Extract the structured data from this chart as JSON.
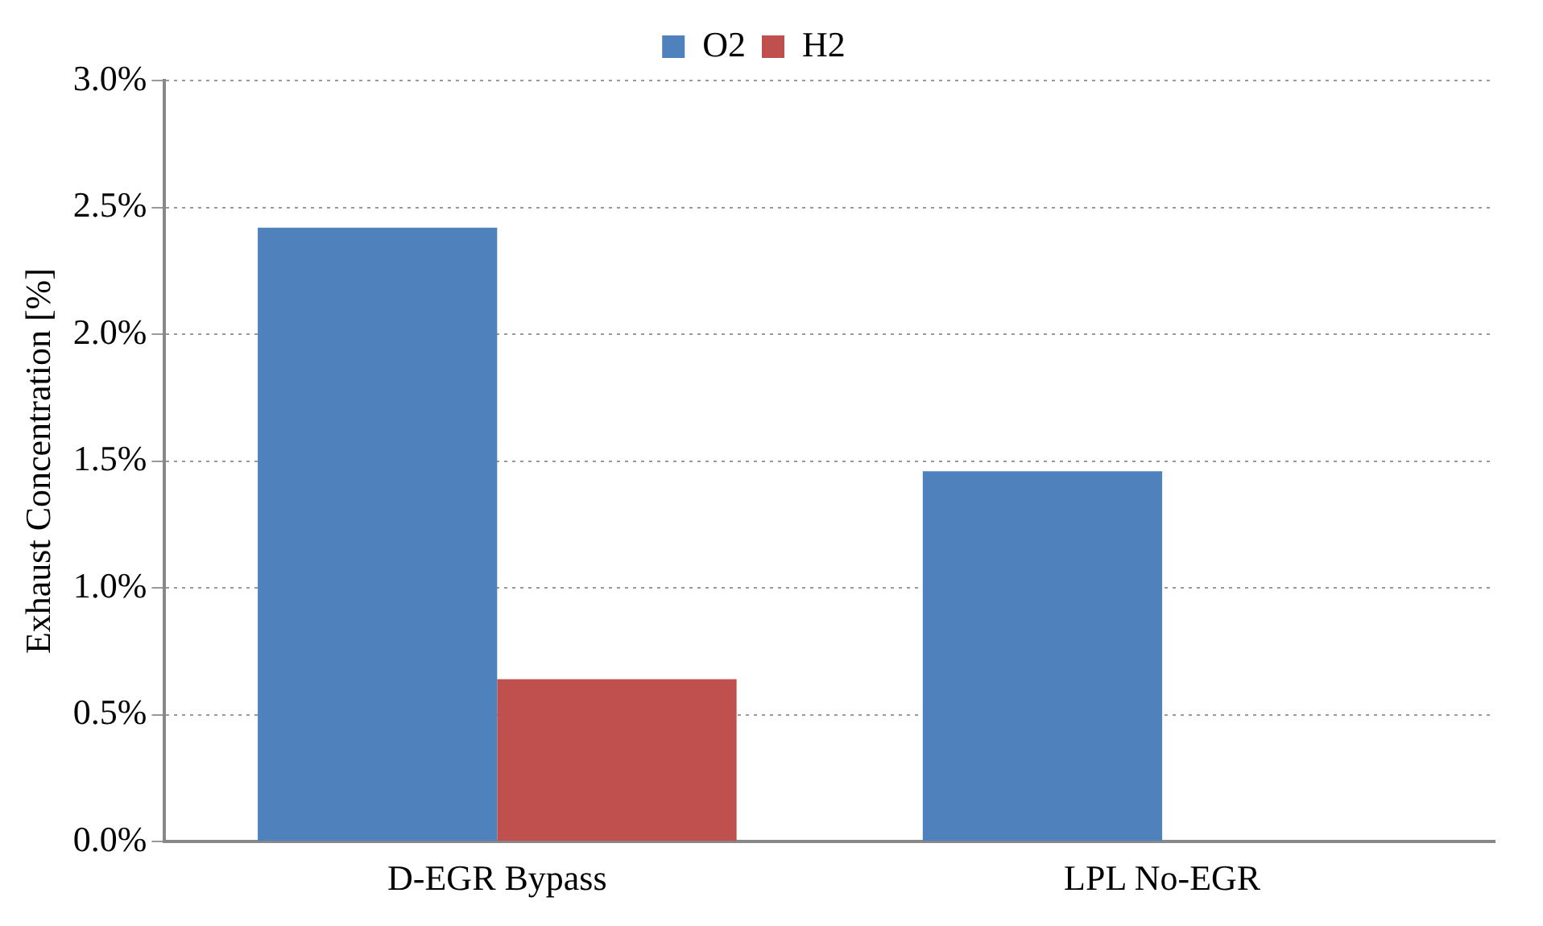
{
  "chart_data": {
    "type": "bar",
    "ylabel": "Exhaust Concentration [%]",
    "categories": [
      "D-EGR Bypass",
      "LPL No-EGR"
    ],
    "series": [
      {
        "name": "O2",
        "color": "#4f81bd",
        "values": [
          2.42,
          1.46
        ]
      },
      {
        "name": "H2",
        "color": "#c0504d",
        "values": [
          0.64,
          null
        ]
      }
    ],
    "ylim": [
      0,
      3
    ],
    "yticks": [
      {
        "value": 0,
        "label": "0.0%"
      },
      {
        "value": 0.5,
        "label": "0.5%"
      },
      {
        "value": 1,
        "label": "1.0%"
      },
      {
        "value": 1.5,
        "label": "1.5%"
      },
      {
        "value": 2,
        "label": "2.0%"
      },
      {
        "value": 2.5,
        "label": "2.5%"
      },
      {
        "value": 3,
        "label": "3.0%"
      }
    ],
    "grid": "y",
    "legend": "top"
  }
}
